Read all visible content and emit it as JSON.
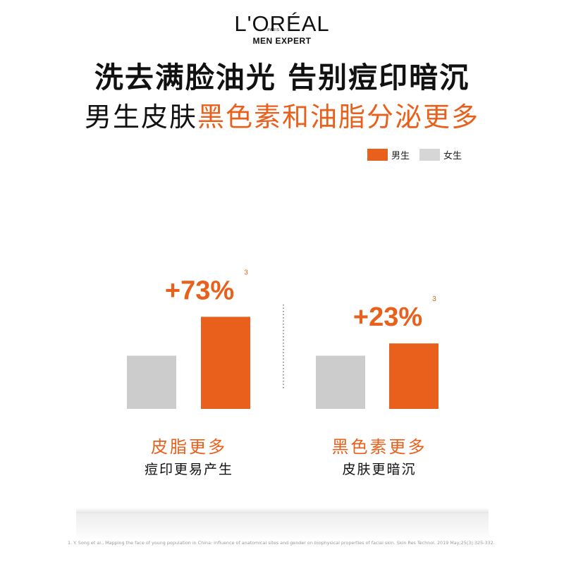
{
  "brand": {
    "logo": "L'ORÉAL",
    "paris": "PARIS",
    "sub": "MEN EXPERT"
  },
  "headline": "洗去满脸油光 告别痘印暗沉",
  "subheadline": {
    "plain": "男生皮肤",
    "highlight": "黑色素和油脂分泌更多"
  },
  "legend": [
    {
      "label": "男生",
      "color": "#e8601c"
    },
    {
      "label": "女生",
      "color": "#d6d6d6"
    }
  ],
  "colors": {
    "men": "#e8601c",
    "women": "#cccccc",
    "accent": "#e8601c"
  },
  "chart_data": [
    {
      "type": "bar",
      "categories": [
        "女生",
        "男生"
      ],
      "values": [
        1.0,
        1.73
      ],
      "annotation": {
        "text": "+73%",
        "superscript": "3"
      },
      "label": "皮脂更多",
      "sublabel": "痘印更易产生"
    },
    {
      "type": "bar",
      "categories": [
        "女生",
        "男生"
      ],
      "values": [
        1.0,
        1.23
      ],
      "annotation": {
        "text": "+23%",
        "superscript": "3"
      },
      "label": "黑色素更多",
      "sublabel": "皮肤更暗沉"
    }
  ],
  "footnote": "1. Y. Song et al., Mapping the face of young population in China: influence of anatomical sites and gender on biophysical properties of facial skin. Skin Res Technol. 2019 May;25(3):325-332."
}
